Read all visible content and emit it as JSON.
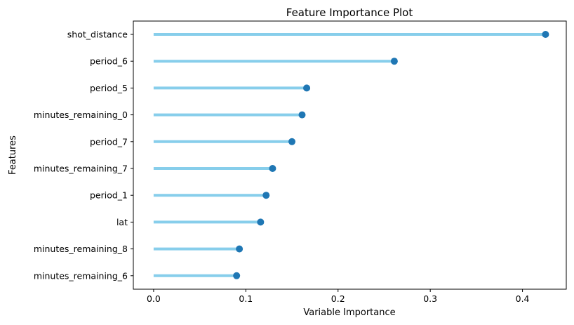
{
  "chart_data": {
    "type": "lollipop",
    "title": "Feature Importance Plot",
    "xlabel": "Variable Importance",
    "ylabel": "Features",
    "xlim": [
      -0.022,
      0.4475
    ],
    "xticks": [
      0.0,
      0.1,
      0.2,
      0.3,
      0.4
    ],
    "xtick_labels": [
      "0.0",
      "0.1",
      "0.2",
      "0.3",
      "0.4"
    ],
    "orientation": "horizontal",
    "grid": false,
    "categories": [
      "shot_distance",
      "period_6",
      "period_5",
      "minutes_remaining_0",
      "period_7",
      "minutes_remaining_7",
      "period_1",
      "lat",
      "minutes_remaining_8",
      "minutes_remaining_6"
    ],
    "values": [
      0.425,
      0.261,
      0.166,
      0.161,
      0.15,
      0.129,
      0.122,
      0.116,
      0.093,
      0.09
    ],
    "colors": {
      "stem": "#87ceeb",
      "marker": "#1f77b4"
    }
  }
}
